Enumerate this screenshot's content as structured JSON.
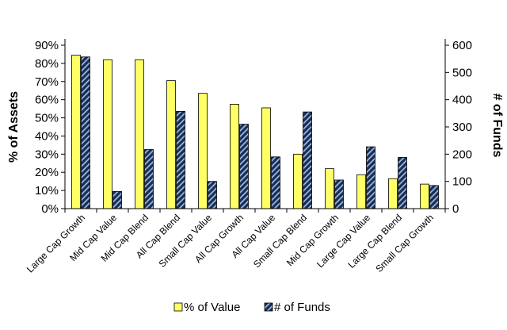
{
  "chart_data": {
    "type": "bar",
    "categories": [
      "Large Cap Growth",
      "Mid Cap Value",
      "Mid Cap Blend",
      "All Cap Blend",
      "Small Cap Value",
      "All Cap Growth",
      "All Cap Value",
      "Small Cap Blend",
      "Mid Cap Growth",
      "Large Cap Value",
      "Large Cap Blend",
      "Small Cap Growth"
    ],
    "series": [
      {
        "name": "% of Value",
        "axis": "left",
        "color": "#FFFF66",
        "values": [
          84.5,
          82,
          82,
          70.5,
          63.5,
          57.5,
          55.5,
          30,
          22,
          18.7,
          16.5,
          13.5
        ]
      },
      {
        "name": "# of Funds",
        "axis": "right",
        "color": "#1F2B4D",
        "values": [
          557,
          63,
          217,
          357,
          100,
          310,
          190,
          355,
          105,
          227,
          188,
          85
        ]
      }
    ],
    "ylabel": "% of Assets",
    "y2label": "# of Funds",
    "ylim": [
      0,
      90
    ],
    "y2lim": [
      0,
      600
    ],
    "yticks": [
      "0%",
      "10%",
      "20%",
      "30%",
      "40%",
      "50%",
      "60%",
      "70%",
      "80%",
      "90%"
    ],
    "y2ticks": [
      "0",
      "100",
      "200",
      "300",
      "400",
      "500",
      "600"
    ],
    "legend_position": "bottom",
    "grid": false
  }
}
